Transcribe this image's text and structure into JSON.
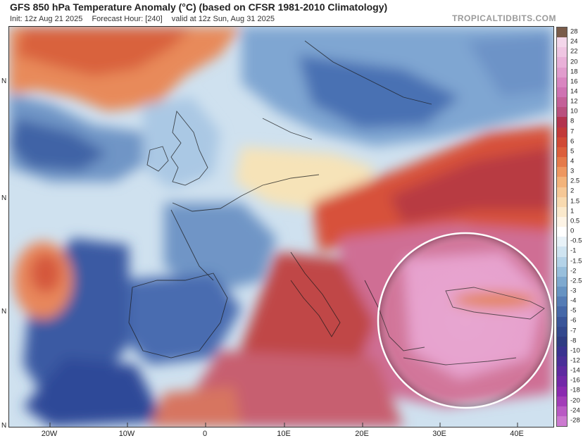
{
  "header": {
    "title": "GFS 850 hPa Temperature Anomaly (°C) (based on CFSR 1981-2010 Climatology)",
    "init": "Init: 12z Aug 21 2025",
    "forecast_hour": "Forecast Hour: [240]",
    "valid": "valid at 12z Sun, Aug 31 2025",
    "brand": "TROPICALTIDBITS.COM"
  },
  "map": {
    "lat_labels": [
      "N",
      "N",
      "N",
      "N"
    ],
    "lon_labels": [
      "20W",
      "10W",
      "0",
      "10E",
      "20E",
      "30E",
      "40E"
    ],
    "highlight": "circle over Balkans and Turkey"
  },
  "colorbar": {
    "labels": [
      "28",
      "24",
      "22",
      "20",
      "18",
      "16",
      "14",
      "12",
      "10",
      "8",
      "7",
      "6",
      "5",
      "4",
      "3",
      "2.5",
      "2",
      "1.5",
      "1",
      "0.5",
      "0",
      "-0.5",
      "-1",
      "-1.5",
      "-2",
      "-2.5",
      "-3",
      "-4",
      "-5",
      "-6",
      "-7",
      "-8",
      "-10",
      "-12",
      "-14",
      "-16",
      "-18",
      "-20",
      "-24",
      "-28"
    ],
    "colors": [
      "#7a5c4a",
      "#f3d6ea",
      "#efc5e2",
      "#e9b0d8",
      "#e19ccd",
      "#d985c0",
      "#cf72b2",
      "#c46098",
      "#b9507e",
      "#b3334e",
      "#c23a3a",
      "#d14a36",
      "#dc5f3c",
      "#e57a4a",
      "#ee9760",
      "#f3b37a",
      "#f6c896",
      "#f8dab0",
      "#fae9cc",
      "#fdf4e6",
      "#ffffff",
      "#e8f2f8",
      "#cfe4f1",
      "#b4d3e8",
      "#98bfdc",
      "#7ea9cf",
      "#6793c2",
      "#557cb5",
      "#4668a8",
      "#3a5599",
      "#33488d",
      "#2f3c82",
      "#3a3390",
      "#4a2f98",
      "#5e2aa0",
      "#7228a8",
      "#8a2ab0",
      "#a23db8",
      "#b95ac4",
      "#cc7ad0"
    ]
  }
}
